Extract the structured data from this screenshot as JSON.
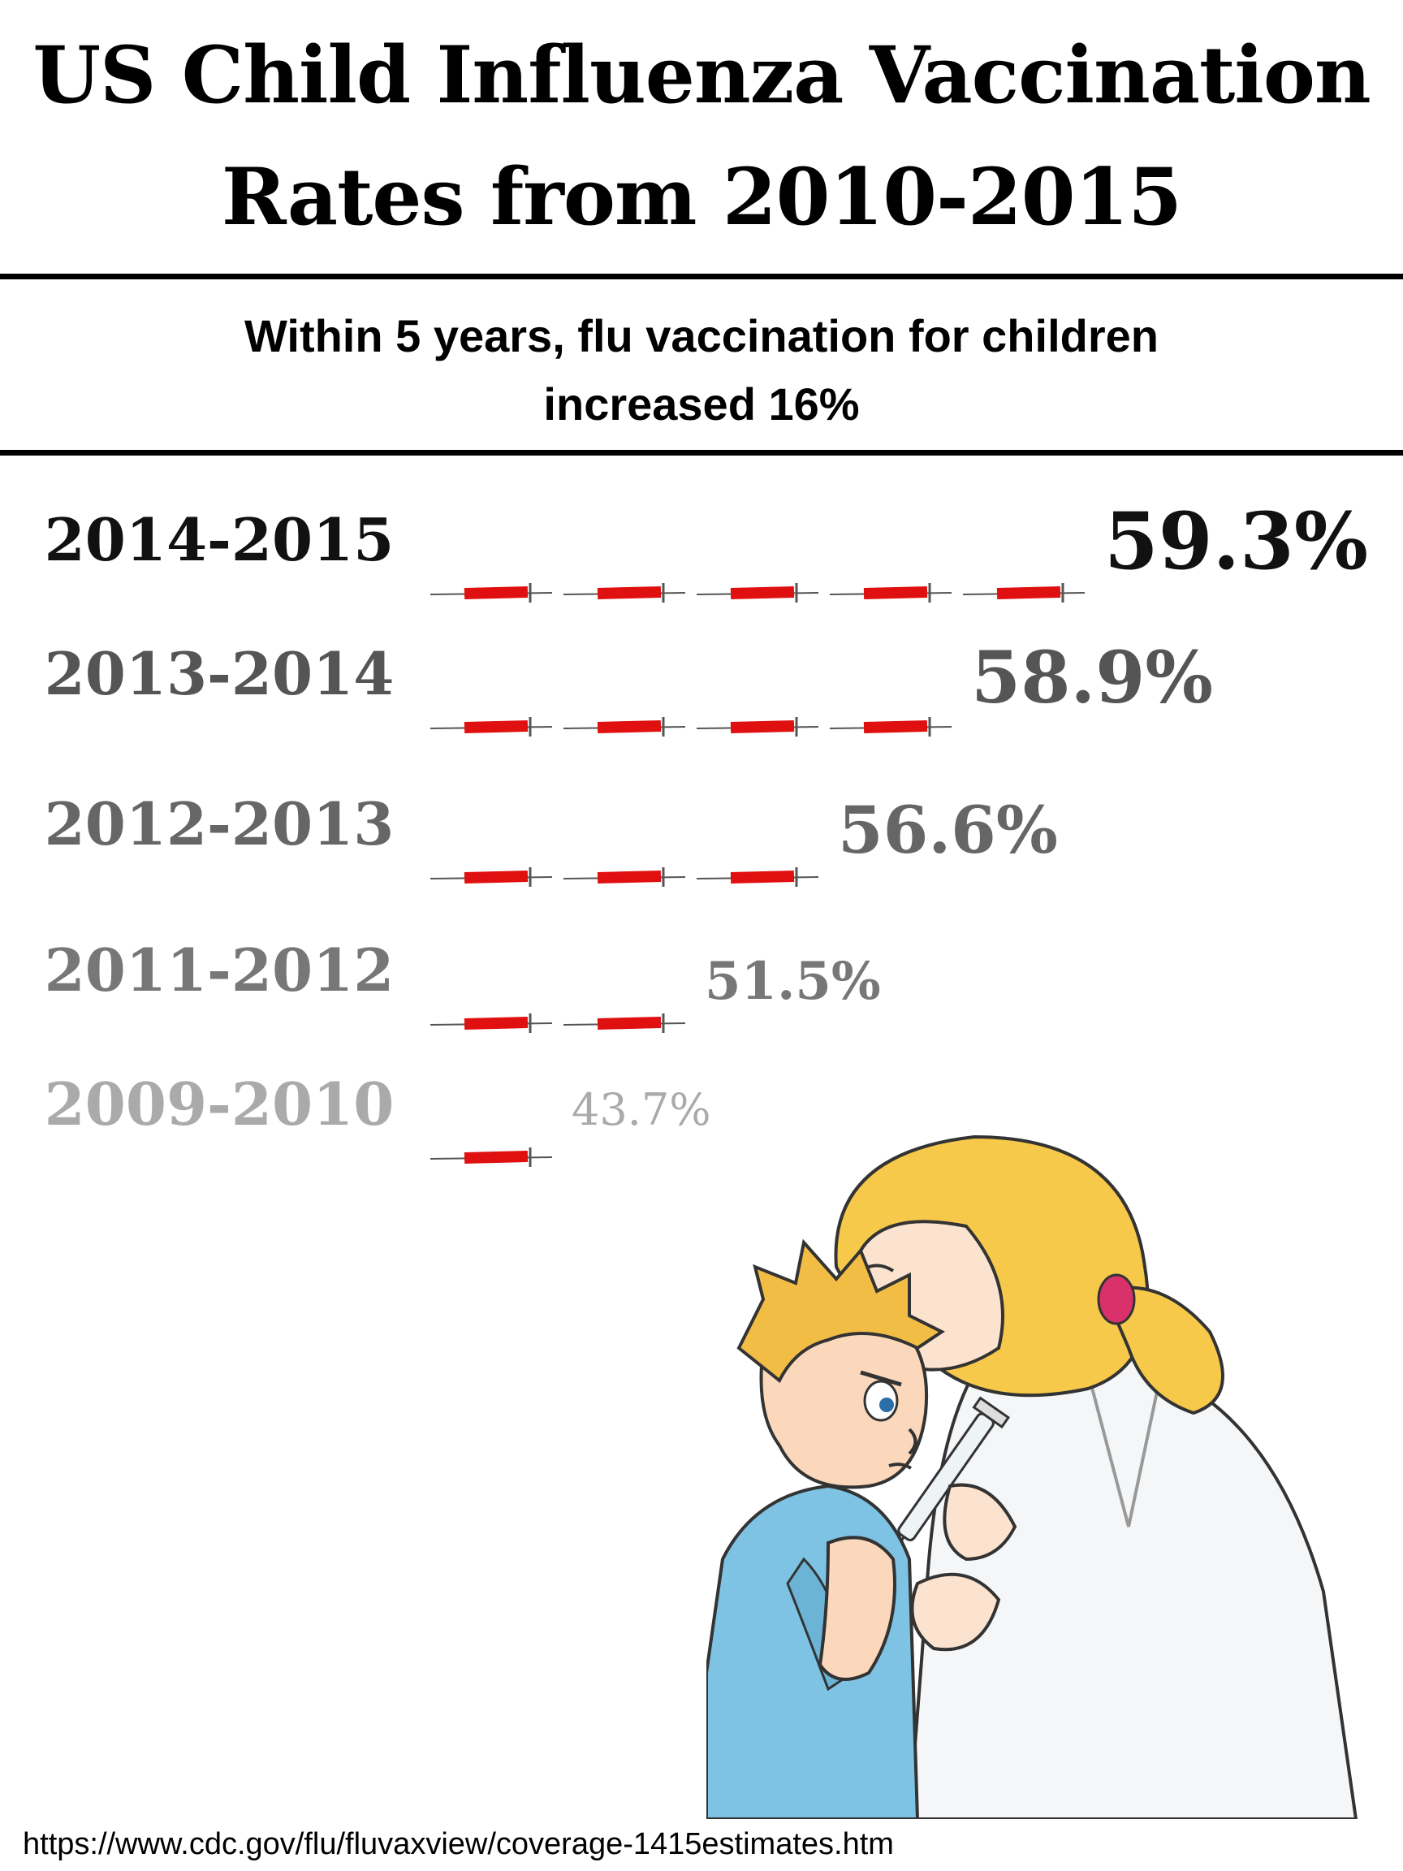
{
  "chart_data": {
    "type": "bar",
    "title": "US Child Influenza Vaccination Rates from 2010-2015",
    "subtitle": "Within 5 years, flu vaccination for children increased 16%",
    "categories": [
      "2014-2015",
      "2013-2014",
      "2012-2013",
      "2011-2012",
      "2009-2010"
    ],
    "values": [
      59.3,
      58.9,
      56.6,
      51.5,
      43.7
    ],
    "value_labels": [
      "59.3%",
      "58.9%",
      "56.6%",
      "51.5%",
      "43.7%"
    ],
    "syringe_counts": [
      5,
      4,
      3,
      2,
      1
    ],
    "label_colors": [
      "#111111",
      "#555555",
      "#666666",
      "#777777",
      "#aaaaaa"
    ],
    "mark_color": "#e01010",
    "xlabel": "",
    "ylabel": ""
  },
  "source": "https://www.cdc.gov/flu/fluvaxview/coverage-1415estimates.htm",
  "colors": {
    "background": "#ffffff",
    "rule": "#000000",
    "syringe": "#e01010"
  },
  "icons": {
    "marks": "syringe-icon",
    "illustration": "nurse-vaccinating-child"
  }
}
